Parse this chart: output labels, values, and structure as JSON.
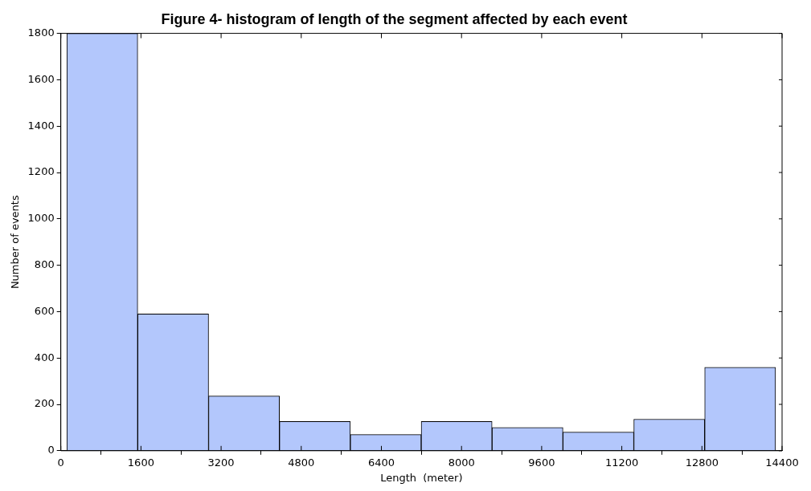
{
  "chart_data": {
    "type": "histogram",
    "title": "Figure 4- histogram of length of the segment affected by each event",
    "xlabel": "Length  (meter)",
    "ylabel": "Number of events",
    "bins": [
      120,
      1535,
      2950,
      4365,
      5780,
      7195,
      8610,
      10025,
      11440,
      12855,
      14270
    ],
    "values": [
      1800,
      590,
      236,
      126,
      70,
      126,
      100,
      80,
      136,
      360
    ],
    "color": "#b3c7fc",
    "xlim": [
      0,
      14400
    ],
    "xticks": [
      0,
      1600,
      3200,
      4800,
      6400,
      8000,
      9600,
      11200,
      12800,
      14400
    ],
    "ylim": [
      0,
      1800
    ],
    "yticks": [
      0,
      200,
      400,
      600,
      800,
      1000,
      1200,
      1400,
      1600,
      1800
    ],
    "grid": false,
    "legend": false
  }
}
